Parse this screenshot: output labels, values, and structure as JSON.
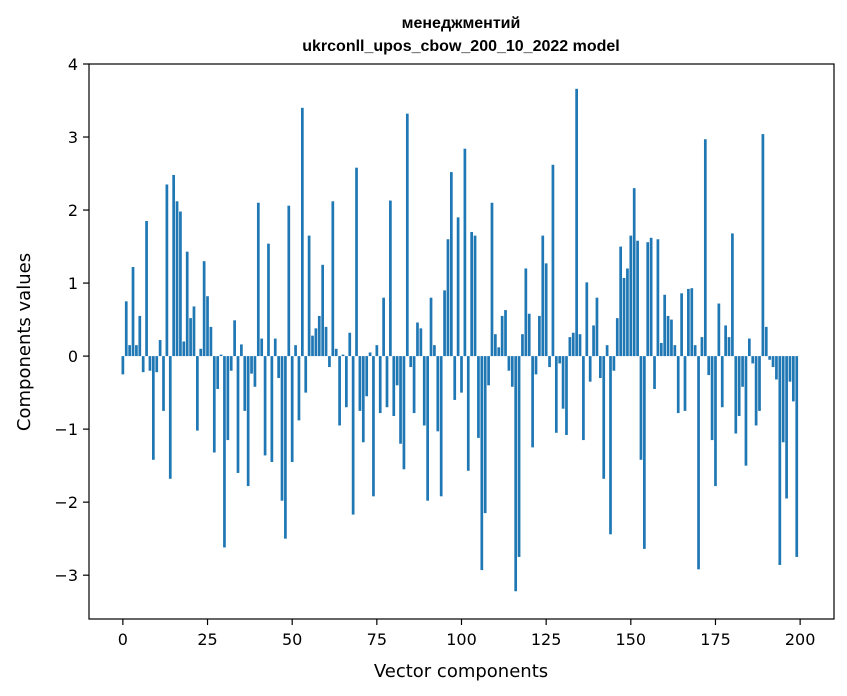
{
  "chart_data": {
    "type": "bar",
    "title_line1": "менеджментий",
    "title_line2": "ukrconll_upos_cbow_200_10_2022 model",
    "xlabel": "Vector components",
    "ylabel": "Components values",
    "xlim": [
      -10,
      210
    ],
    "ylim": [
      -3.6,
      4.0
    ],
    "xticks": [
      0,
      25,
      50,
      75,
      100,
      125,
      150,
      175,
      200
    ],
    "yticks": [
      -3,
      -2,
      -1,
      0,
      1,
      2,
      3,
      4
    ],
    "bar_color": "#1f77b4",
    "grid": false,
    "values": [
      -0.25,
      0.75,
      0.15,
      1.22,
      0.15,
      0.55,
      -0.22,
      1.85,
      -0.2,
      -1.42,
      -0.22,
      0.22,
      -0.75,
      2.35,
      -1.68,
      2.48,
      2.12,
      1.98,
      0.2,
      1.43,
      0.52,
      0.68,
      -1.02,
      0.1,
      1.3,
      0.82,
      0.4,
      -1.32,
      -0.45,
      0.02,
      -2.62,
      -1.15,
      -0.2,
      0.49,
      -1.6,
      0.16,
      -0.75,
      -1.78,
      -0.24,
      -0.42,
      2.1,
      0.24,
      -1.36,
      1.54,
      -1.45,
      0.24,
      -0.3,
      -1.98,
      -2.5,
      2.06,
      -1.45,
      0.15,
      -0.88,
      3.4,
      -0.5,
      1.65,
      0.28,
      0.38,
      0.55,
      1.25,
      0.4,
      -0.15,
      2.12,
      0.1,
      -0.95,
      0.02,
      -0.7,
      0.32,
      -2.17,
      2.58,
      -0.75,
      -1.18,
      -0.55,
      0.05,
      -1.92,
      0.15,
      -0.78,
      0.8,
      -0.7,
      2.13,
      -0.82,
      -0.4,
      -1.2,
      -1.55,
      3.32,
      -0.15,
      -0.78,
      0.46,
      0.38,
      -0.95,
      -1.98,
      0.8,
      0.15,
      -1.03,
      -1.92,
      0.9,
      1.6,
      2.52,
      -0.6,
      1.9,
      -0.5,
      2.84,
      -1.57,
      1.7,
      1.65,
      -1.12,
      -2.93,
      -2.15,
      -0.4,
      2.1,
      0.3,
      0.12,
      0.55,
      0.63,
      -0.2,
      -0.42,
      -3.22,
      -2.75,
      0.3,
      1.2,
      0.58,
      -1.25,
      -0.25,
      0.55,
      1.65,
      1.27,
      -0.15,
      2.62,
      -1.05,
      -0.1,
      -0.72,
      -1.08,
      0.26,
      0.32,
      3.66,
      0.3,
      -1.15,
      1.01,
      -0.35,
      0.42,
      0.8,
      -0.3,
      -1.68,
      0.15,
      -2.44,
      -0.2,
      0.52,
      1.5,
      1.07,
      1.2,
      1.65,
      2.3,
      1.58,
      -1.42,
      -2.64,
      1.56,
      1.62,
      -0.45,
      1.6,
      0.18,
      0.84,
      0.55,
      0.5,
      0.15,
      -0.78,
      0.86,
      -0.75,
      0.92,
      0.93,
      0.15,
      -2.92,
      0.26,
      2.97,
      -0.26,
      -1.15,
      -1.78,
      0.72,
      -0.7,
      0.42,
      0.26,
      1.68,
      -1.06,
      -0.82,
      -0.42,
      -1.5,
      0.24,
      -0.1,
      -0.95,
      -0.75,
      3.04,
      0.4,
      -0.05,
      -0.15,
      -0.32,
      -2.86,
      -1.18,
      -1.95,
      -0.35,
      -0.62,
      -2.75
    ]
  }
}
